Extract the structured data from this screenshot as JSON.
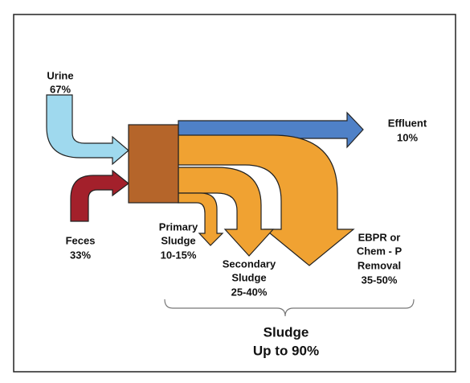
{
  "nodes": [
    {
      "label": [
        "Urine"
      ],
      "value": "67%"
    },
    {
      "label": [
        "Feces"
      ],
      "value": "33%"
    },
    {
      "label": [
        "Effluent"
      ],
      "value": "10%"
    },
    {
      "label": [
        "Primary",
        "Sludge"
      ],
      "value": "10-15%"
    },
    {
      "label": [
        "Secondary",
        "Sludge"
      ],
      "value": "25-40%"
    },
    {
      "label": [
        "EBPR or",
        "Chem - P",
        "Removal"
      ],
      "value": "35-50%"
    }
  ],
  "summary": {
    "label": "Sludge",
    "value": "Up to 90%"
  }
}
